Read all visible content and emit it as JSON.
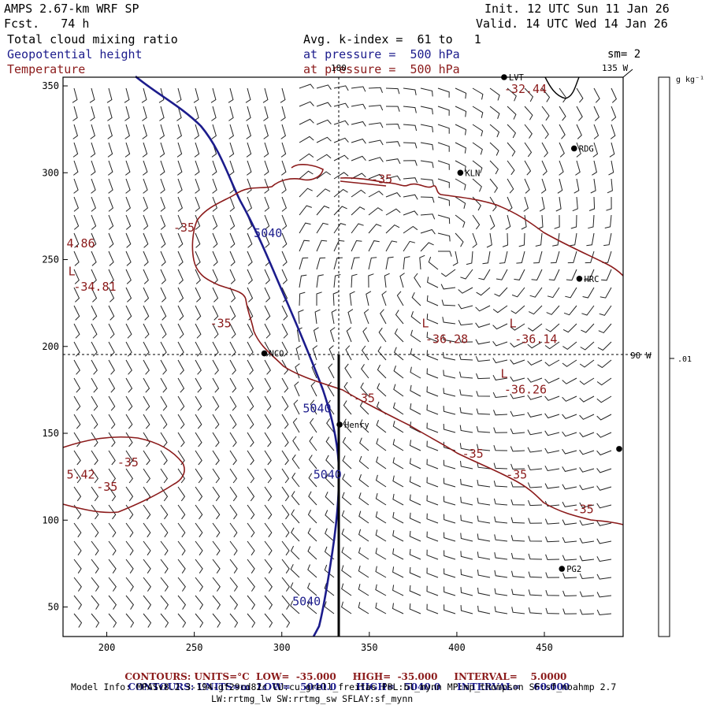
{
  "header": {
    "model": "AMPS 2.67-km WRF SP",
    "fcst": "Fcst.   74 h",
    "init": "Init. 12 UTC Sun 11 Jan 26",
    "valid": "Valid. 14 UTC Wed 14 Jan 26",
    "field1": "Total cloud mixing ratio",
    "field2": "Geopotential height",
    "field3": "Temperature",
    "avg": "Avg. k-index =  61 to   1",
    "press1": "at pressure =  500 hPa",
    "press2": "at pressure =  500 hPa",
    "smooth": "sm= 2",
    "lon135": "135 W",
    "lon180": "180",
    "lon90": "90 W"
  },
  "colorbar": {
    "unit": "g kg⁻¹",
    "tick": ".01"
  },
  "axes": {
    "x_ticks": [
      200,
      250,
      300,
      350,
      400,
      450
    ],
    "y_ticks": [
      50,
      100,
      150,
      200,
      250,
      300,
      350
    ],
    "x_range": [
      175,
      495
    ],
    "y_range": [
      33,
      355
    ]
  },
  "stations": [
    {
      "name": "RDG",
      "x": 467,
      "y": 314
    },
    {
      "name": "KLN",
      "x": 402,
      "y": 300
    },
    {
      "name": "HRC",
      "x": 470,
      "y": 239
    },
    {
      "name": "NCO",
      "x": 290,
      "y": 196
    },
    {
      "name": "Henry",
      "x": 333,
      "y": 155
    },
    {
      "name": "PG2",
      "x": 460,
      "y": 72
    },
    {
      "name": "LVT",
      "x": 427,
      "y": 355
    }
  ],
  "edge_markers": [
    {
      "x": 495,
      "y": 141
    }
  ],
  "temp_labels": [
    {
      "text": "-32.44",
      "x": 427,
      "y": 346
    },
    {
      "text": "-35",
      "x": 351,
      "y": 294
    },
    {
      "text": "-35",
      "x": 238,
      "y": 266
    },
    {
      "text": "4.86",
      "x": 177,
      "y": 257
    },
    {
      "text": "L",
      "x": 178,
      "y": 241
    },
    {
      "text": "-34.81",
      "x": 181,
      "y": 232
    },
    {
      "text": "-35",
      "x": 259,
      "y": 211
    },
    {
      "text": "L",
      "x": 380,
      "y": 211
    },
    {
      "text": "-36.28",
      "x": 382,
      "y": 202
    },
    {
      "text": "L",
      "x": 430,
      "y": 211
    },
    {
      "text": "-36.14",
      "x": 433,
      "y": 202
    },
    {
      "text": "L",
      "x": 425,
      "y": 182
    },
    {
      "text": "-36.26",
      "x": 427,
      "y": 173
    },
    {
      "text": "-35",
      "x": 341,
      "y": 168
    },
    {
      "text": "-35",
      "x": 403,
      "y": 136
    },
    {
      "text": "-35",
      "x": 428,
      "y": 124
    },
    {
      "text": "-35",
      "x": 206,
      "y": 131
    },
    {
      "text": "5.42",
      "x": 177,
      "y": 124
    },
    {
      "text": "-35",
      "x": 194,
      "y": 117
    },
    {
      "text": "-35",
      "x": 466,
      "y": 104
    }
  ],
  "height_labels": [
    {
      "text": "5040",
      "x": 284,
      "y": 263
    },
    {
      "text": "5040",
      "x": 312,
      "y": 162
    },
    {
      "text": "5040",
      "x": 318,
      "y": 124
    },
    {
      "text": "5040",
      "x": 306,
      "y": 51
    }
  ],
  "footer": {
    "line1_label": "CONTOURS:",
    "line1_units": "UNITS=°C",
    "line1_low": "LOW=  -35.000",
    "line1_high": "HIGH=  -35.000",
    "line1_int": "INTERVAL=    5.0000",
    "line2_label": "CONTOURS:",
    "line2_units": "UNITS=m",
    "line2_low": "LOW=   5040.0",
    "line2_high": "HIGH=   5040.0",
    "line2_int": "INTERVAL=    60.000",
    "info1": "Model Info: MPASv8.2.3-194-gf29cd82c CU:cu_grell_freitas PBL:bl_mynn MP:mp_thompson SF:sf_noahmp 2.7",
    "info2": "LW:rrtmg_lw SW:rrtmg_sw SFLAY:sf_mynn"
  },
  "colors": {
    "height": "#1c1c8c",
    "temp": "#8b1a1a",
    "footer": "#8b1a1a",
    "footer2": "#1c1c8c"
  }
}
